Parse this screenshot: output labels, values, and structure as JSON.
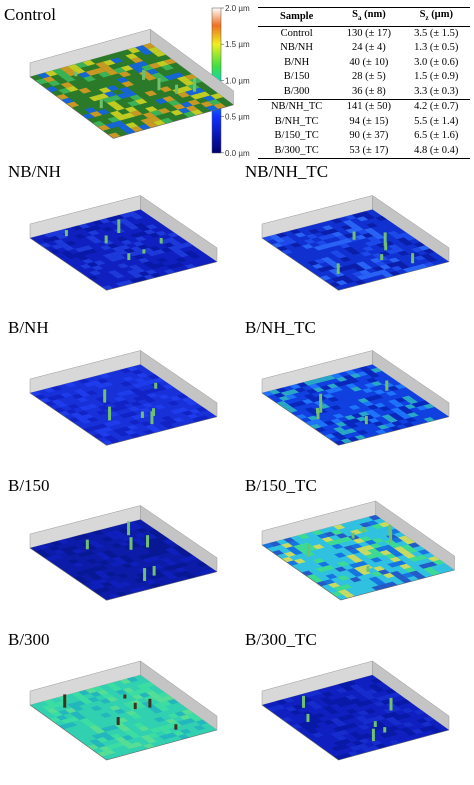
{
  "panels": [
    {
      "label": "Control"
    },
    {
      "label": "NB/NH"
    },
    {
      "label": "NB/NH_TC"
    },
    {
      "label": "B/NH"
    },
    {
      "label": "B/NH_TC"
    },
    {
      "label": "B/150"
    },
    {
      "label": "B/150_TC"
    },
    {
      "label": "B/300"
    },
    {
      "label": "B/300_TC"
    }
  ],
  "colorbar": {
    "labels": [
      "2.0 µm",
      "1.5 µm",
      "1.0 µm",
      "0.5 µm",
      "0.0 µm"
    ]
  },
  "table": {
    "header": [
      {
        "text": "Sample"
      },
      {
        "symbol": "S",
        "subscript": "a",
        "unit": "(nm)"
      },
      {
        "symbol": "S",
        "subscript": "z",
        "unit": "(µm)"
      }
    ],
    "rows": [
      [
        "Control",
        "130 (± 17)",
        "3.5 (± 1.5)"
      ],
      [
        "NB/NH",
        "24 (± 4)",
        "1.3 (± 0.5)"
      ],
      [
        "B/NH",
        "40 (± 10)",
        "3.0 (± 0.6)"
      ],
      [
        "B/150",
        "28 (± 5)",
        "1.5 (± 0.9)"
      ],
      [
        "B/300",
        "36 (± 8)",
        "3.3 (± 0.3)"
      ],
      [
        "NB/NH_TC",
        "141 (± 50)",
        "4.2 (± 0.7)"
      ],
      [
        "B/NH_TC",
        "94 (± 15)",
        "5.5 (± 1.4)"
      ],
      [
        "B/150_TC",
        "90 (± 37)",
        "6.5 (± 1.6)"
      ],
      [
        "B/300_TC",
        "53 (± 17)",
        "4.8 (± 0.4)"
      ]
    ]
  }
}
